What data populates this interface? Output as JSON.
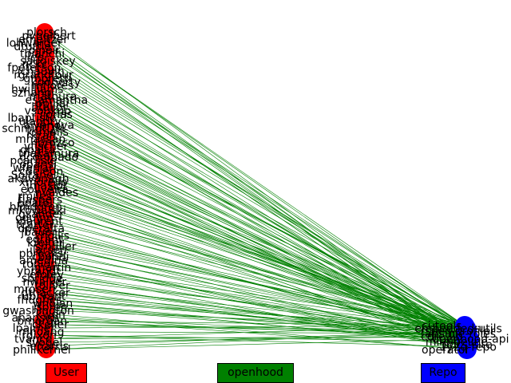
{
  "legend": {
    "user_label": "User",
    "edge_label": "openhood",
    "repo_label": "Repo"
  },
  "colors": {
    "user": "#ff0000",
    "repo": "#0000ff",
    "edge": "#008000",
    "text": "#000000",
    "background": "#ffffff"
  },
  "user_labels": [
    "plorsch",
    "pvnelbert",
    "emeltzer",
    "lohwarder",
    "dtuttle",
    "ojneir",
    "tbianchi",
    "jlee",
    "saudiskey",
    "nckc",
    "fpeterson",
    "jchauvin",
    "rgrandfour",
    "gmoretti",
    "kdoherty",
    "mflores",
    "hwilliams",
    "szhang",
    "mathura",
    "esamantha",
    "ppillai",
    "btailor",
    "vsoukup",
    "ijonas",
    "lbaptiste",
    "ulandry",
    "aivanova",
    "schmidtDM",
    "ksmalls",
    "rkraft",
    "mhassan",
    "lorozco",
    "yfischer",
    "gbalta",
    "tnakamura",
    "dcoronado",
    "pcarlisle",
    "oparisi",
    "wferrari",
    "cdeleon",
    "Soltanel",
    "akavanagh",
    "xmorello",
    "jmaslot",
    "eoliveira",
    "nvaldes",
    "rmiles",
    "fjaspers",
    "bpatel",
    "hlindgren",
    "mkowalski",
    "gsander",
    "oquinn",
    "vlaurent",
    "tcarter",
    "dperalta",
    "jbauer",
    "zhollis",
    "egrant",
    "kreiter",
    "smuller",
    "ilarsen",
    "pbrooks",
    "cbondi",
    "amedina",
    "ronion",
    "lmartin",
    "ybrandt",
    "efoley",
    "sbridge",
    "nwalker",
    "toliver",
    "mrosen",
    "dthacker",
    "ubryant",
    "fhughes",
    "wnolan",
    "jsoren",
    "gwashington",
    "kwon",
    "ahansen",
    "bmorgan",
    "ckeller",
    "lpalmer",
    "mhoang",
    "rdixon",
    "tvance",
    "svogel",
    "eharris",
    "phillkernel"
  ],
  "repo_labels": [
    "ci-tools",
    "embedded-utils",
    "rspec-profiler",
    "ansible-roles",
    "core-lib",
    "openhood-api",
    "ml-pipeline",
    "docs-site",
    "1y2q-repo",
    "operator"
  ]
}
